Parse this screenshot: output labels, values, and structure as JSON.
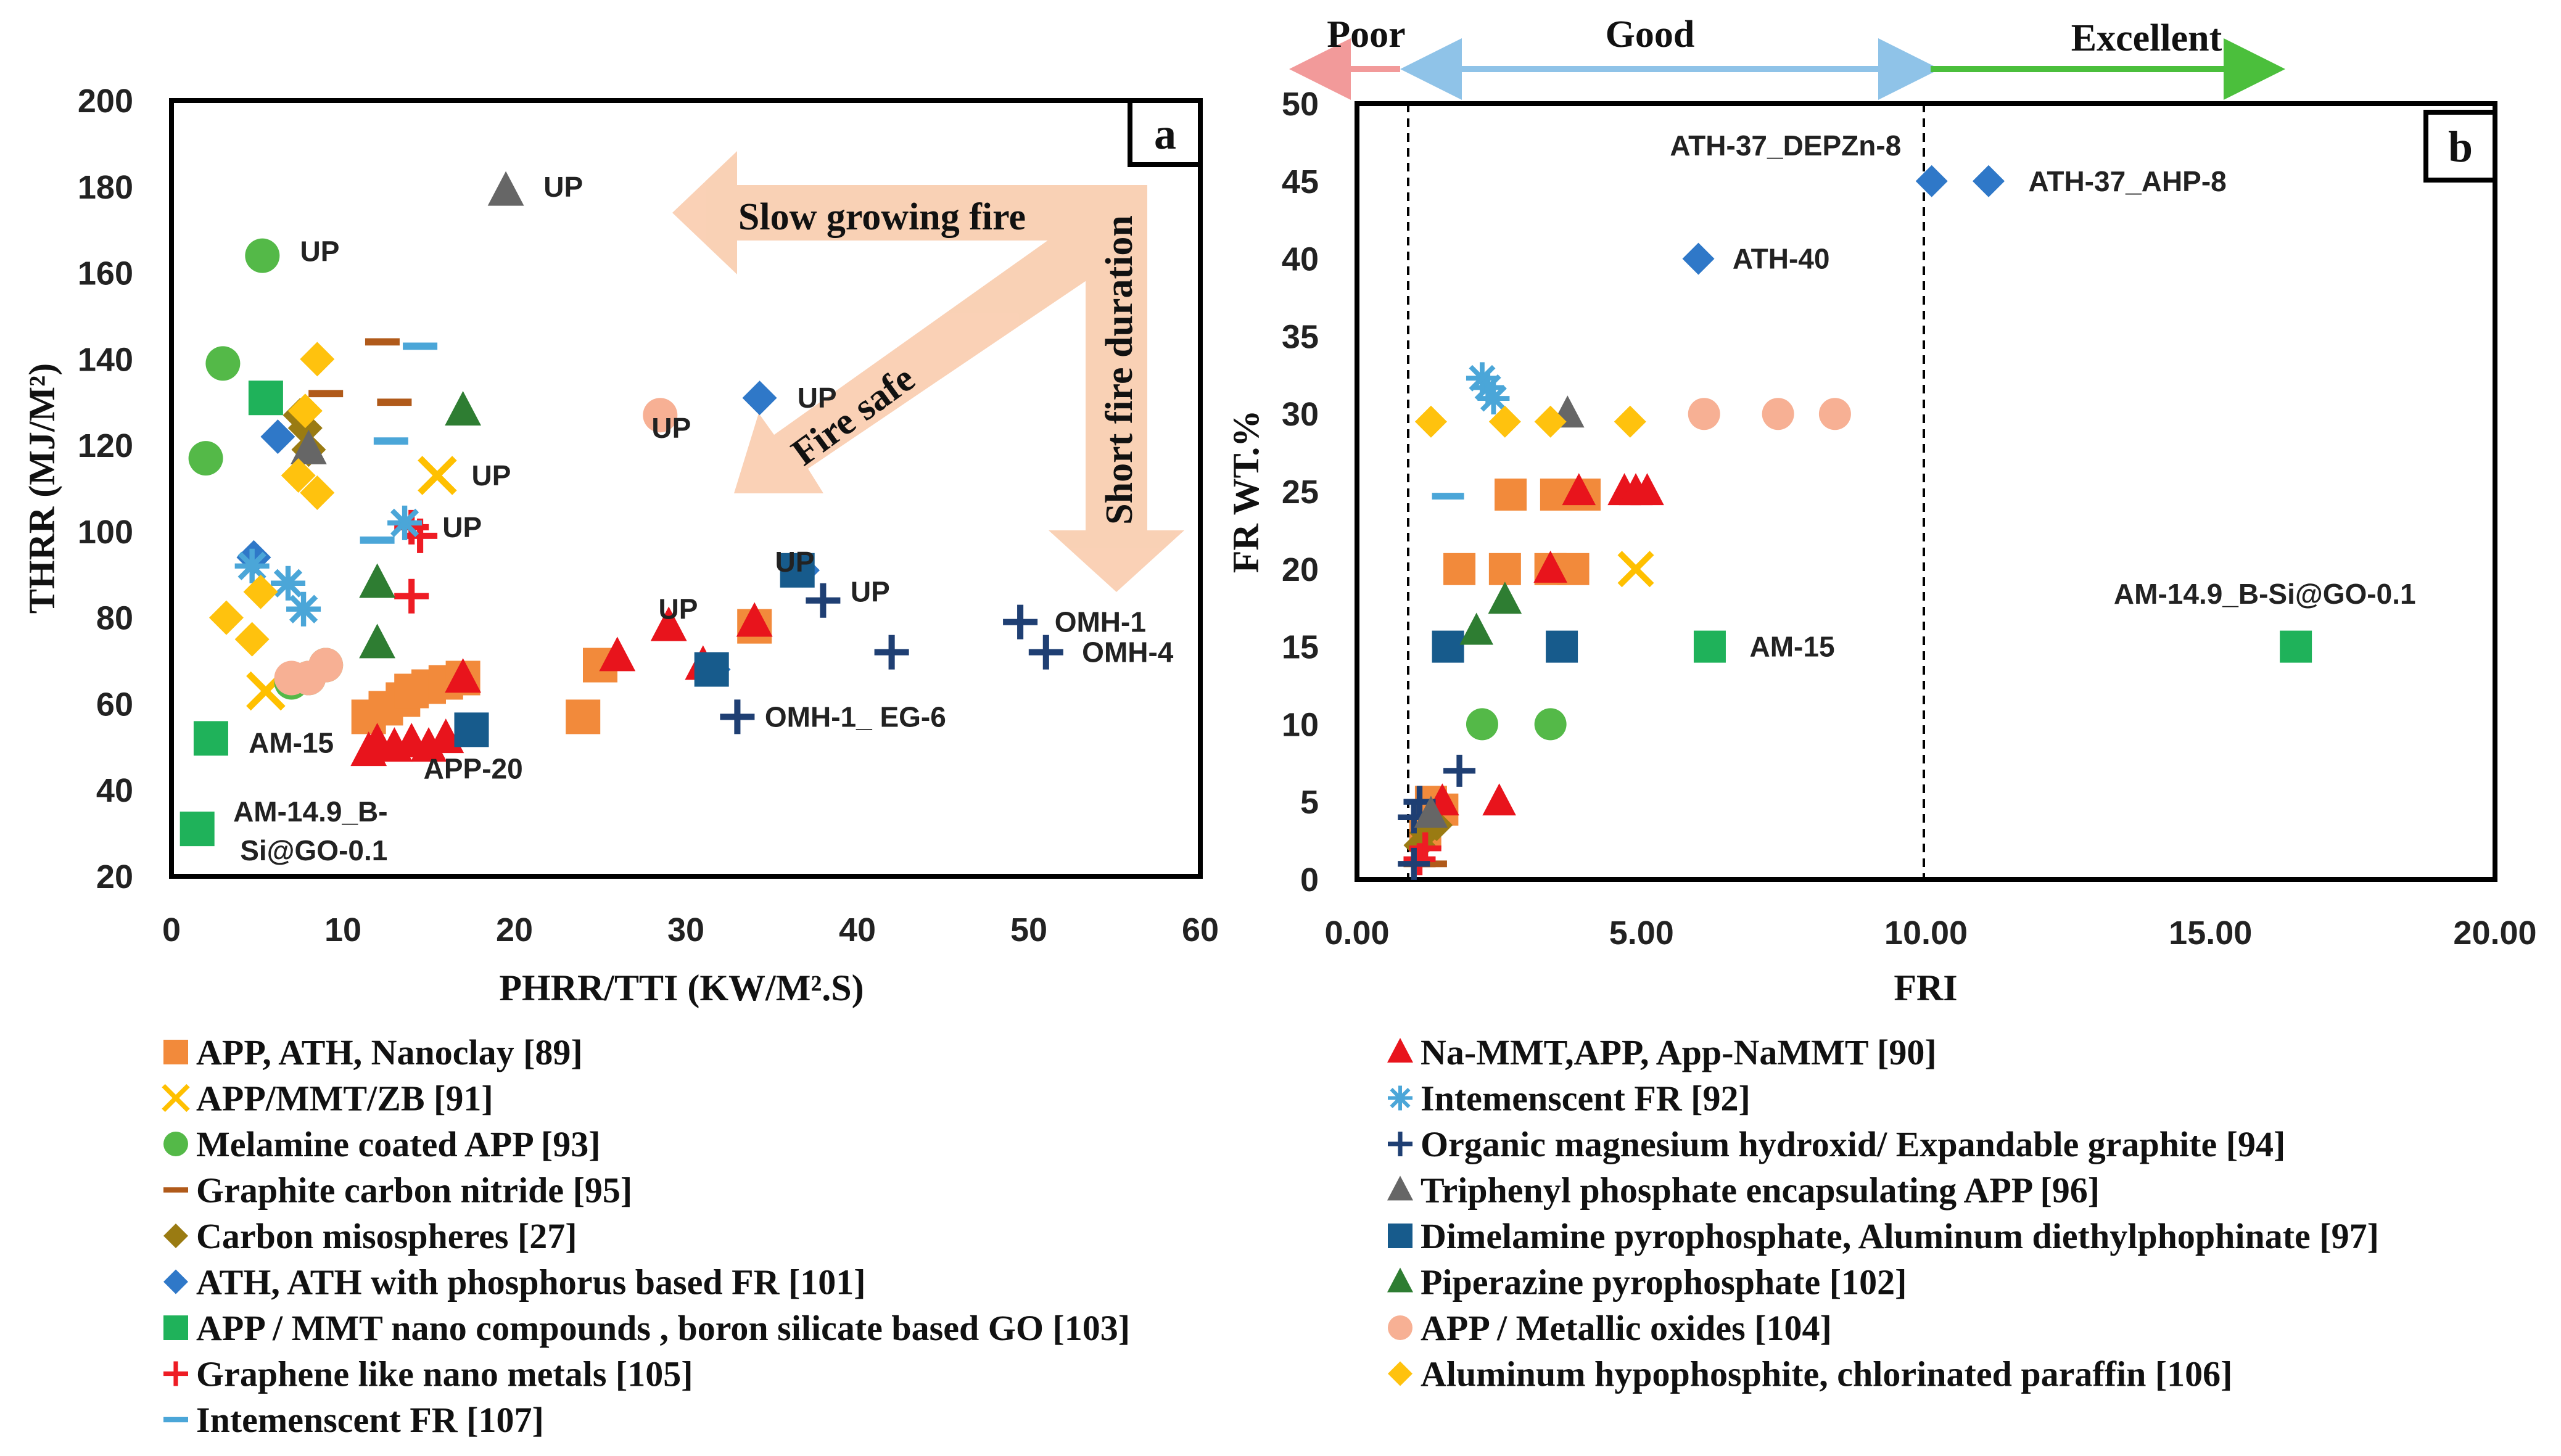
{
  "colors": {
    "orange": "#f28a3b",
    "yellow": "#ffc000",
    "green_l": "#54b948",
    "brown": "#b05a1a",
    "olive": "#9a7b12",
    "blue": "#2f78c8",
    "green_sq": "#1fb25a",
    "red_plus": "#ee1c24",
    "cyan": "#4ba6d8",
    "red_tri": "#e8141c",
    "navy": "#1f3f73",
    "gray": "#666666",
    "navy_sq": "#175b8c",
    "darkgreen": "#2e7d32",
    "peach": "#f7b094",
    "gold": "#ffc20e"
  },
  "chart_data": [
    {
      "id": "a",
      "type": "scatter",
      "panel_label": "a",
      "xlabel": "PHRR/TTI (KW/M².S)",
      "ylabel": "THRR (MJ/M²)",
      "xlim": [
        0,
        60
      ],
      "ylim": [
        20,
        200
      ],
      "xticks": [
        "0",
        "10",
        "20",
        "30",
        "40",
        "50",
        "60"
      ],
      "yticks": [
        "20",
        "40",
        "60",
        "80",
        "100",
        "120",
        "140",
        "160",
        "180",
        "200"
      ],
      "arrows": [
        "Slow growing fire",
        "Fire safe",
        "Short fire duration"
      ],
      "series": [
        {
          "key": "s89",
          "points": [
            [
              11.5,
              57
            ],
            [
              12.5,
              59
            ],
            [
              13.5,
              61
            ],
            [
              14,
              63
            ],
            [
              15,
              64
            ],
            [
              16,
              65
            ],
            [
              17,
              66
            ],
            [
              24,
              57
            ],
            [
              25,
              69
            ],
            [
              34,
              78
            ]
          ]
        },
        {
          "key": "s91",
          "points": [
            [
              15.5,
              113
            ],
            [
              5.5,
              63
            ]
          ]
        },
        {
          "key": "s93",
          "points": [
            [
              2,
              117
            ],
            [
              3,
              139
            ],
            [
              5.3,
              164
            ],
            [
              7,
              65
            ],
            [
              8,
              66
            ],
            [
              9,
              69
            ]
          ]
        },
        {
          "key": "s95",
          "points": [
            [
              12.3,
              144
            ],
            [
              13,
              130
            ],
            [
              9,
              132
            ]
          ]
        },
        {
          "key": "s27",
          "points": [
            [
              7.5,
              127
            ],
            [
              7.8,
              124
            ],
            [
              8,
              119
            ]
          ]
        },
        {
          "key": "s101",
          "points": [
            [
              4.8,
              94
            ],
            [
              6.2,
              122
            ],
            [
              34.3,
              131
            ],
            [
              36.8,
              91
            ],
            [
              31.6,
              68
            ]
          ]
        },
        {
          "key": "s103",
          "points": [
            [
              5.5,
              131
            ],
            [
              2.3,
              52
            ],
            [
              1.5,
              31
            ]
          ]
        },
        {
          "key": "s105",
          "points": [
            [
              14,
              101
            ],
            [
              14.5,
              99
            ],
            [
              14,
              85
            ]
          ]
        },
        {
          "key": "s107",
          "points": [
            [
              14.5,
              143
            ],
            [
              12.8,
              121
            ],
            [
              12,
              98
            ]
          ]
        },
        {
          "key": "s90",
          "points": [
            [
              11.5,
              49
            ],
            [
              12,
              51
            ],
            [
              13,
              50
            ],
            [
              14,
              51
            ],
            [
              15,
              50
            ],
            [
              16,
              52
            ],
            [
              17,
              66
            ],
            [
              26,
              71
            ],
            [
              29,
              78
            ],
            [
              31,
              69
            ],
            [
              34,
              79
            ]
          ]
        },
        {
          "key": "s92",
          "points": [
            [
              4.7,
              92
            ],
            [
              6.8,
              88
            ],
            [
              7.7,
              82
            ],
            [
              13.6,
              102
            ]
          ]
        },
        {
          "key": "s94",
          "points": [
            [
              38,
              84
            ],
            [
              42,
              72
            ],
            [
              49.5,
              79
            ],
            [
              51,
              72
            ],
            [
              33,
              57
            ]
          ]
        },
        {
          "key": "s96",
          "points": [
            [
              19.5,
              179
            ],
            [
              8,
              119
            ]
          ]
        },
        {
          "key": "s97",
          "points": [
            [
              17.5,
              54
            ],
            [
              31.5,
              68
            ],
            [
              36.5,
              91
            ]
          ]
        },
        {
          "key": "s102",
          "points": [
            [
              17,
              128
            ],
            [
              12,
              88
            ],
            [
              12,
              74
            ]
          ]
        },
        {
          "key": "s104",
          "points": [
            [
              28.5,
              127
            ],
            [
              7,
              66
            ],
            [
              8,
              66
            ],
            [
              9,
              69
            ]
          ]
        },
        {
          "key": "s106",
          "points": [
            [
              3.2,
              80
            ],
            [
              4.7,
              75
            ],
            [
              5.2,
              86
            ],
            [
              7.4,
              113
            ],
            [
              8.5,
              109
            ],
            [
              8.5,
              140
            ],
            [
              7.8,
              128
            ]
          ]
        }
      ],
      "annotations": [
        {
          "text": "UP",
          "x": 21.7,
          "y": 180
        },
        {
          "text": "UP",
          "x": 7.5,
          "y": 165
        },
        {
          "text": "UP",
          "x": 36.5,
          "y": 131
        },
        {
          "text": "UP",
          "x": 28,
          "y": 124
        },
        {
          "text": "UP",
          "x": 17.5,
          "y": 113
        },
        {
          "text": "UP",
          "x": 15.8,
          "y": 101
        },
        {
          "text": "UP",
          "x": 35.2,
          "y": 93
        },
        {
          "text": "UP",
          "x": 39.6,
          "y": 86
        },
        {
          "text": "UP",
          "x": 28.4,
          "y": 82
        },
        {
          "text": "OMH-1",
          "x": 51.5,
          "y": 79
        },
        {
          "text": "OMH-4",
          "x": 53.1,
          "y": 72
        },
        {
          "text": "OMH-1_ EG-6",
          "x": 34.6,
          "y": 57
        },
        {
          "text": "APP-20",
          "x": 14.7,
          "y": 45
        },
        {
          "text": "AM-15",
          "x": 4.5,
          "y": 51
        },
        {
          "text": "AM-14.9_B-",
          "x": 3.6,
          "y": 35
        },
        {
          "text": "Si@GO-0.1",
          "x": 4,
          "y": 26
        }
      ]
    },
    {
      "id": "b",
      "type": "scatter",
      "panel_label": "b",
      "xlabel": "FRI",
      "ylabel": "FR WT.%",
      "xlim": [
        0,
        20
      ],
      "ylim": [
        0,
        50
      ],
      "xticks": [
        "0.00",
        "5.00",
        "10.00",
        "15.00",
        "20.00"
      ],
      "yticks": [
        "0",
        "5",
        "10",
        "15",
        "20",
        "25",
        "30",
        "35",
        "40",
        "45",
        "50"
      ],
      "zones": [
        "Poor",
        "Good",
        "Excellent"
      ],
      "dashed_x": [
        1,
        10
      ],
      "series": [
        {
          "key": "s89",
          "points": [
            [
              2.7,
              24.8
            ],
            [
              3.5,
              24.8
            ],
            [
              4,
              24.8
            ],
            [
              1.8,
              20
            ],
            [
              2.6,
              20
            ],
            [
              3.4,
              20
            ],
            [
              3.8,
              20
            ],
            [
              1.3,
              5
            ],
            [
              1.5,
              4.5
            ],
            [
              1.2,
              3
            ]
          ]
        },
        {
          "key": "s91",
          "points": [
            [
              4.9,
              20
            ]
          ]
        },
        {
          "key": "s93",
          "points": [
            [
              2.2,
              10
            ],
            [
              3.4,
              10
            ]
          ]
        },
        {
          "key": "s95",
          "points": [
            [
              1.1,
              1
            ],
            [
              1.3,
              1
            ]
          ]
        },
        {
          "key": "s27",
          "points": [
            [
              1.2,
              3
            ],
            [
              1.4,
              3.5
            ],
            [
              1.1,
              2.2
            ]
          ]
        },
        {
          "key": "s101",
          "points": [
            [
              10.1,
              45
            ],
            [
              11.1,
              45
            ],
            [
              6,
              40
            ]
          ]
        },
        {
          "key": "s103",
          "points": [
            [
              6.2,
              15
            ],
            [
              16.5,
              15
            ]
          ]
        },
        {
          "key": "s105",
          "points": [
            [
              1.2,
              2
            ],
            [
              1.1,
              1.3
            ]
          ]
        },
        {
          "key": "s107",
          "points": [
            [
              1.6,
              24.7
            ]
          ]
        },
        {
          "key": "s90",
          "points": [
            [
              3.4,
              20
            ],
            [
              3.9,
              25
            ],
            [
              4.7,
              25
            ],
            [
              4.9,
              25
            ],
            [
              5.1,
              25
            ],
            [
              2.5,
              5
            ],
            [
              1.5,
              5
            ]
          ]
        },
        {
          "key": "s92",
          "points": [
            [
              2.3,
              31.7
            ],
            [
              2.4,
              31
            ],
            [
              2.2,
              32.3
            ]
          ]
        },
        {
          "key": "s94",
          "points": [
            [
              1.8,
              7
            ],
            [
              1.1,
              5
            ],
            [
              1,
              4
            ],
            [
              1,
              1
            ]
          ]
        },
        {
          "key": "s96",
          "points": [
            [
              3.7,
              30
            ],
            [
              1.3,
              4.2
            ]
          ]
        },
        {
          "key": "s97",
          "points": [
            [
              1.6,
              15
            ],
            [
              3.6,
              15
            ]
          ]
        },
        {
          "key": "s102",
          "points": [
            [
              2.6,
              18
            ],
            [
              2.1,
              16
            ]
          ]
        },
        {
          "key": "s104",
          "points": [
            [
              6.1,
              30
            ],
            [
              7.4,
              30
            ],
            [
              8.4,
              30
            ]
          ]
        },
        {
          "key": "s106",
          "points": [
            [
              1.3,
              29.5
            ],
            [
              2.6,
              29.5
            ],
            [
              3.4,
              29.5
            ],
            [
              4.8,
              29.5
            ]
          ]
        }
      ],
      "annotations": [
        {
          "text": "ATH-37_DEPZn-8",
          "x": 5.5,
          "y": 47.3
        },
        {
          "text": "ATH-37_AHP-8",
          "x": 11.8,
          "y": 45
        },
        {
          "text": "ATH-40",
          "x": 6.6,
          "y": 40
        },
        {
          "text": "AM-15",
          "x": 6.9,
          "y": 15
        },
        {
          "text": "AM-14.9_B-Si@GO-0.1",
          "x": 13.3,
          "y": 18.4
        }
      ]
    }
  ],
  "legend": {
    "left": [
      {
        "key": "s89",
        "label": "APP,  ATH, Nanoclay [89]"
      },
      {
        "key": "s91",
        "label": "APP/MMT/ZB [91]"
      },
      {
        "key": "s93",
        "label": "Melamine coated APP [93]"
      },
      {
        "key": "s95",
        "label": "Graphite carbon nitride [95]"
      },
      {
        "key": "s27",
        "label": "Carbon misospheres [27]"
      },
      {
        "key": "s101",
        "label": "ATH, ATH with phosphorus based FR [101]"
      },
      {
        "key": "s103",
        "label": "APP / MMT nano compounds , boron silicate based GO [103]"
      },
      {
        "key": "s105",
        "label": "Graphene like nano metals [105]"
      },
      {
        "key": "s107",
        "label": "Intemenscent FR [107]"
      }
    ],
    "right": [
      {
        "key": "s90",
        "label": "Na-MMT,APP, App-NaMMT [90]"
      },
      {
        "key": "s92",
        "label": "Intemenscent FR [92]"
      },
      {
        "key": "s94",
        "label": "Organic magnesium hydroxid/ Expandable graphite [94]"
      },
      {
        "key": "s96",
        "label": "Triphenyl phosphate encapsulating APP [96]"
      },
      {
        "key": "s97",
        "label": "Dimelamine pyrophosphate, Aluminum diethylphophinate [97]"
      },
      {
        "key": "s102",
        "label": "Piperazine pyrophosphate [102]"
      },
      {
        "key": "s104",
        "label": "APP / Metallic oxides [104]"
      },
      {
        "key": "s106",
        "label": "Aluminum hypophosphite, chlorinated paraffin [106]"
      }
    ]
  }
}
